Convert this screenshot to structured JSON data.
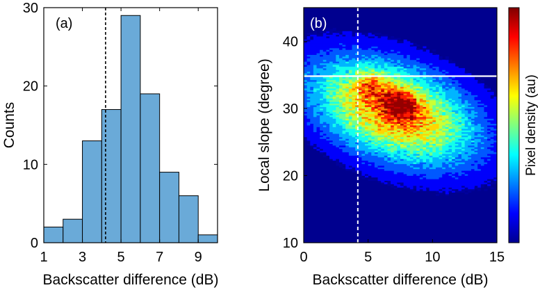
{
  "chart_data": [
    {
      "type": "bar",
      "panel_label": "(a)",
      "xlabel": "Backscatter difference (dB)",
      "ylabel": "Counts",
      "xlim": [
        1,
        10
      ],
      "ylim": [
        0,
        30
      ],
      "xticks": [
        "1",
        "3",
        "5",
        "7",
        "9"
      ],
      "yticks": [
        "0",
        "10",
        "20",
        "30"
      ],
      "bin_edges": [
        1,
        2,
        3,
        4,
        5,
        6,
        7,
        8,
        9,
        10
      ],
      "values": [
        2,
        3,
        13,
        17,
        29,
        19,
        9,
        6,
        1
      ],
      "bar_color": "#6aaad8",
      "reference_line": {
        "x": 4.2,
        "style": "dashed",
        "color": "#000000"
      }
    },
    {
      "type": "heatmap",
      "panel_label": "(b)",
      "xlabel": "Backscatter difference (dB)",
      "ylabel": "Local slope (degree)",
      "colorbar_label": "Pixel density (au)",
      "xlim": [
        0,
        15
      ],
      "ylim": [
        10,
        45
      ],
      "xticks": [
        "0",
        "5",
        "10",
        "15"
      ],
      "yticks": [
        "10",
        "20",
        "30",
        "40"
      ],
      "colormap": "jet",
      "density_peaks": [
        {
          "x": 8.0,
          "y": 30.0,
          "weight": 1.0
        },
        {
          "x": 7.0,
          "y": 31.0,
          "weight": 0.95
        },
        {
          "x": 5.2,
          "y": 33.5,
          "weight": 0.85
        }
      ],
      "reference_lines": [
        {
          "orientation": "vertical",
          "x": 4.2,
          "style": "dashed",
          "color": "#ffffff"
        },
        {
          "orientation": "horizontal",
          "y": 34.8,
          "style": "solid",
          "color": "#ffffff"
        }
      ]
    }
  ]
}
